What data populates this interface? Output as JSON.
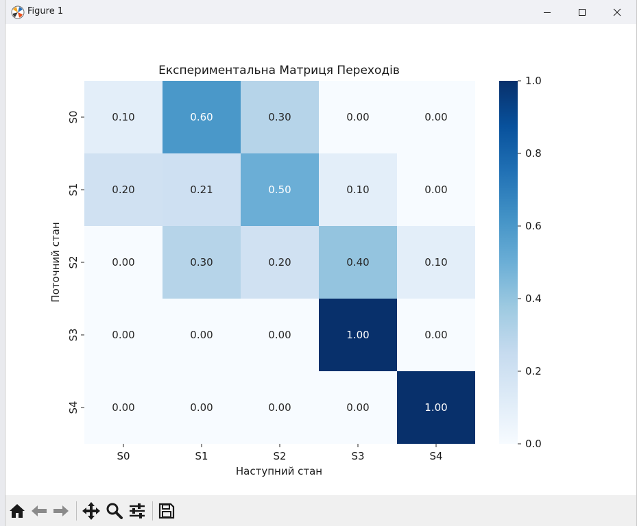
{
  "window": {
    "title": "Figure 1",
    "minimize_icon": "minimize-icon",
    "maximize_icon": "maximize-icon",
    "close_icon": "close-icon"
  },
  "toolbar": {
    "items": [
      {
        "name": "home-button",
        "icon": "home-icon"
      },
      {
        "name": "back-button",
        "icon": "back-arrow-icon"
      },
      {
        "name": "forward-button",
        "icon": "forward-arrow-icon"
      },
      {
        "name": "pan-button",
        "icon": "move-icon"
      },
      {
        "name": "zoom-button",
        "icon": "magnifier-icon"
      },
      {
        "name": "configure-subplots-button",
        "icon": "sliders-icon"
      },
      {
        "name": "save-button",
        "icon": "floppy-disk-icon"
      }
    ]
  },
  "chart_data": {
    "type": "heatmap",
    "title": "Експериментальна Матриця Переходів",
    "xlabel": "Наступний стан",
    "ylabel": "Поточний стан",
    "x_categories": [
      "S0",
      "S1",
      "S2",
      "S3",
      "S4"
    ],
    "y_categories": [
      "S0",
      "S1",
      "S2",
      "S3",
      "S4"
    ],
    "values": [
      [
        0.1,
        0.6,
        0.3,
        0.0,
        0.0
      ],
      [
        0.2,
        0.21,
        0.5,
        0.1,
        0.0
      ],
      [
        0.0,
        0.3,
        0.2,
        0.4,
        0.1
      ],
      [
        0.0,
        0.0,
        0.0,
        1.0,
        0.0
      ],
      [
        0.0,
        0.0,
        0.0,
        0.0,
        1.0
      ]
    ],
    "colormap": "Blues",
    "vmin": 0.0,
    "vmax": 1.0,
    "colorbar_ticks": [
      "0.0",
      "0.2",
      "0.4",
      "0.6",
      "0.8",
      "1.0"
    ],
    "annotation_format": "0.00"
  }
}
